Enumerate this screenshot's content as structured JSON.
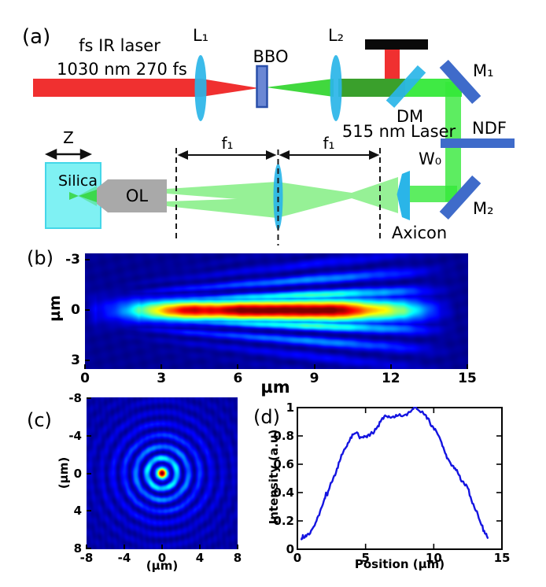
{
  "figure": {
    "panel_a": {
      "label": "(a)",
      "laser_line1": "fs IR laser",
      "laser_line2": "1030 nm 270 fs",
      "lens1": "L₁",
      "bbo": "BBO",
      "lens2": "L₂",
      "dm": "DM",
      "dm_sub": "515 nm Laser",
      "m1": "M₁",
      "ndf": "NDF",
      "w0": "W₀",
      "m2": "M₂",
      "axicon": "Axicon",
      "f1": "f₁",
      "z": "Z",
      "silica": "Silica",
      "ol": "OL",
      "colors": {
        "ir_beam": "#f03030",
        "green_beam_bright": "#35e93a",
        "green_beam_dark": "#3aa02c",
        "lens_cyan": "#2ab5e8",
        "mirror_blue": "#3f6bca",
        "bbo_fill": "#6b87d4",
        "bbo_border": "#2a4faa",
        "silica_fill": "#7ff1f3",
        "silica_border": "#44d7e8",
        "objective_gray": "#a9a9a9",
        "beam_dump": "#0a0a0a"
      }
    },
    "panel_b": {
      "label": "(b)"
    },
    "panel_c": {
      "label": "(c)"
    },
    "panel_d": {
      "label": "(d)"
    }
  },
  "chart_data": [
    {
      "type": "heatmap",
      "panel": "b",
      "description": "Side view of femtosecond Bessel beam intensity inside silica: bright elongated focal line along y=0 from about 3 to 13.5 um with dark-red core near 6-11 um, surrounded by fanning interference fringes on a dark blue background (jet colormap).",
      "xlabel": "µm",
      "ylabel": "µm",
      "x_ticks": [
        0,
        3,
        6,
        9,
        12,
        15
      ],
      "y_ticks": [
        -3,
        0,
        3
      ],
      "x_range": [
        0,
        15
      ],
      "y_range": [
        -3.4,
        3.55
      ],
      "colormap": "jet",
      "legend": "none",
      "grid": false,
      "render": {
        "boost": 1.12,
        "background": 0.02,
        "core_width": [
          0.5,
          0.013,
          0.45,
          1.5
        ],
        "fringe": {
          "amp": 0.65,
          "period": [
            0.45,
            0.055
          ],
          "envelope": [
            1.0,
            0.14
          ]
        }
      }
    },
    {
      "type": "heatmap",
      "panel": "c",
      "description": "Transverse cross-section of the Bessel beam: bright red central core at origin with a yellow rim, bright cyan first ring near r=1.6 um and fading concentric blue rings out to r~6.5 um on dark blue background (jet colormap).",
      "xlabel": "(µm)",
      "ylabel": "(µm)",
      "x_ticks": [
        -8,
        -4,
        0,
        4,
        8
      ],
      "y_ticks": [
        -8,
        -4,
        0,
        4,
        8
      ],
      "x_range": [
        -8,
        8
      ],
      "y_range": [
        -8,
        8
      ],
      "colormap": "jet",
      "legend": "none",
      "grid": false,
      "render": {
        "background": 0.03,
        "core_radius": 0.55,
        "ring": {
          "amp": 0.55,
          "period": 1.22,
          "offset": 0.4,
          "decay": 3.0,
          "wobble": 0.12
        }
      }
    },
    {
      "type": "line",
      "panel": "d",
      "title": "",
      "xlabel": "Position (µm)",
      "ylabel": "Intensity (a.u)",
      "x_ticks": [
        0,
        5,
        10,
        15
      ],
      "y_ticks": [
        0,
        0.2,
        0.4,
        0.6,
        0.8,
        1
      ],
      "xlim": [
        0,
        15
      ],
      "ylim": [
        0,
        1
      ],
      "line_color": "#1414e0",
      "grid": false,
      "legend": "none",
      "points": [
        [
          0.3,
          0.07
        ],
        [
          0.4,
          0.1
        ],
        [
          0.5,
          0.08
        ],
        [
          0.65,
          0.09
        ],
        [
          0.8,
          0.11
        ],
        [
          1.0,
          0.13
        ],
        [
          1.2,
          0.16
        ],
        [
          1.4,
          0.2
        ],
        [
          1.6,
          0.24
        ],
        [
          1.8,
          0.3
        ],
        [
          2.0,
          0.36
        ],
        [
          2.1,
          0.4
        ],
        [
          2.2,
          0.38
        ],
        [
          2.35,
          0.43
        ],
        [
          2.5,
          0.47
        ],
        [
          2.7,
          0.52
        ],
        [
          2.9,
          0.57
        ],
        [
          3.1,
          0.62
        ],
        [
          3.3,
          0.67
        ],
        [
          3.5,
          0.71
        ],
        [
          3.7,
          0.75
        ],
        [
          3.9,
          0.79
        ],
        [
          4.1,
          0.81
        ],
        [
          4.3,
          0.82
        ],
        [
          4.5,
          0.8
        ],
        [
          4.7,
          0.79
        ],
        [
          4.9,
          0.8
        ],
        [
          5.1,
          0.79
        ],
        [
          5.3,
          0.8
        ],
        [
          5.5,
          0.82
        ],
        [
          5.7,
          0.85
        ],
        [
          5.9,
          0.87
        ],
        [
          6.1,
          0.9
        ],
        [
          6.3,
          0.92
        ],
        [
          6.5,
          0.94
        ],
        [
          6.7,
          0.94
        ],
        [
          6.9,
          0.93
        ],
        [
          7.1,
          0.93
        ],
        [
          7.3,
          0.94
        ],
        [
          7.6,
          0.94
        ],
        [
          7.9,
          0.95
        ],
        [
          8.1,
          0.96
        ],
        [
          8.3,
          0.97
        ],
        [
          8.5,
          0.99
        ],
        [
          8.7,
          1.0
        ],
        [
          8.9,
          0.98
        ],
        [
          9.1,
          0.97
        ],
        [
          9.3,
          0.95
        ],
        [
          9.5,
          0.92
        ],
        [
          9.7,
          0.9
        ],
        [
          9.9,
          0.87
        ],
        [
          10.1,
          0.85
        ],
        [
          10.3,
          0.81
        ],
        [
          10.5,
          0.77
        ],
        [
          10.7,
          0.72
        ],
        [
          10.9,
          0.67
        ],
        [
          11.1,
          0.63
        ],
        [
          11.3,
          0.59
        ],
        [
          11.5,
          0.57
        ],
        [
          11.7,
          0.56
        ],
        [
          11.9,
          0.52
        ],
        [
          12.1,
          0.48
        ],
        [
          12.3,
          0.45
        ],
        [
          12.5,
          0.43
        ],
        [
          12.7,
          0.37
        ],
        [
          12.9,
          0.32
        ],
        [
          13.1,
          0.27
        ],
        [
          13.3,
          0.22
        ],
        [
          13.5,
          0.17
        ],
        [
          13.7,
          0.13
        ],
        [
          13.85,
          0.11
        ],
        [
          13.95,
          0.08
        ]
      ],
      "render": {
        "noise_amplitude": 0.008,
        "subdivisions": 3
      }
    }
  ]
}
